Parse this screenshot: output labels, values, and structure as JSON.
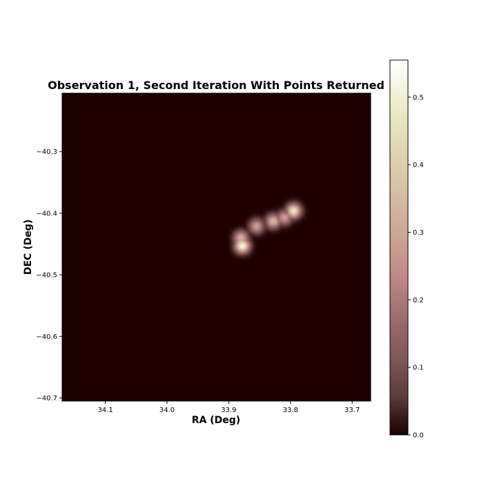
{
  "chart_data": {
    "type": "heatmap",
    "title": "Observation 1, Second Iteration With Points Returned",
    "xlabel": "RA (Deg)",
    "ylabel": "DEC (Deg)",
    "xlim": [
      34.17,
      33.67
    ],
    "ylim": [
      -40.705,
      -40.205
    ],
    "x_ticks": [
      {
        "value": 34.1,
        "label": "34.1"
      },
      {
        "value": 34.0,
        "label": "34.0"
      },
      {
        "value": 33.9,
        "label": "33.9"
      },
      {
        "value": 33.8,
        "label": "33.8"
      },
      {
        "value": 33.7,
        "label": "33.7"
      }
    ],
    "y_ticks": [
      {
        "value": -40.3,
        "label": "−40.3"
      },
      {
        "value": -40.4,
        "label": "−40.4"
      },
      {
        "value": -40.5,
        "label": "−40.5"
      },
      {
        "value": -40.6,
        "label": "−40.6"
      },
      {
        "value": -40.7,
        "label": "−40.7"
      }
    ],
    "colorbar": {
      "colormap": "pink",
      "range": [
        0.0,
        0.555
      ],
      "ticks": [
        {
          "value": 0.0,
          "label": "0.0"
        },
        {
          "value": 0.1,
          "label": "0.1"
        },
        {
          "value": 0.2,
          "label": "0.2"
        },
        {
          "value": 0.3,
          "label": "0.3"
        },
        {
          "value": 0.4,
          "label": "0.4"
        },
        {
          "value": 0.5,
          "label": "0.5"
        }
      ]
    },
    "background_value": 0.0,
    "sources": [
      {
        "ra": 33.878,
        "dec": -40.453,
        "peak": 0.55
      },
      {
        "ra": 33.88,
        "dec": -40.44,
        "peak": 0.35
      },
      {
        "ra": 33.855,
        "dec": -40.421,
        "peak": 0.3
      },
      {
        "ra": 33.828,
        "dec": -40.413,
        "peak": 0.36
      },
      {
        "ra": 33.81,
        "dec": -40.407,
        "peak": 0.3
      },
      {
        "ra": 33.795,
        "dec": -40.396,
        "peak": 0.5
      }
    ]
  }
}
